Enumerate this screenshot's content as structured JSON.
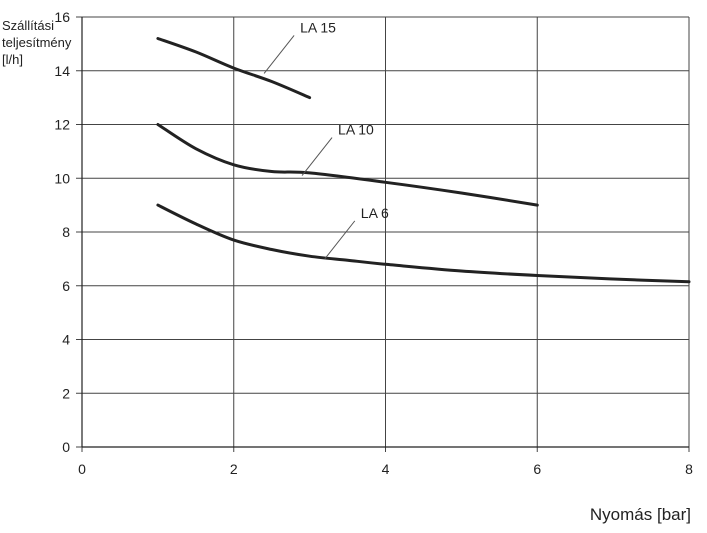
{
  "chart_data": {
    "type": "line",
    "ylabel_lines": [
      "Szállítási",
      "teljesítmény",
      "[l/h]"
    ],
    "xlabel": "Nyomás [bar]",
    "xlim": [
      0,
      8
    ],
    "ylim": [
      0,
      16
    ],
    "x_ticks": [
      "0",
      "2",
      "4",
      "6",
      "8"
    ],
    "y_ticks": [
      "0",
      "2",
      "4",
      "6",
      "8",
      "10",
      "12",
      "14",
      "16"
    ],
    "x_tick_values": [
      0,
      2,
      4,
      6,
      8
    ],
    "y_tick_values": [
      0,
      2,
      4,
      6,
      8,
      10,
      12,
      14,
      16
    ],
    "grid": true,
    "line_color": "#222222",
    "grid_color": "#444444",
    "series": [
      {
        "name": "LA 15",
        "points": [
          [
            1.0,
            15.2
          ],
          [
            1.5,
            14.7
          ],
          [
            2.0,
            14.1
          ],
          [
            2.5,
            13.6
          ],
          [
            3.0,
            13.0
          ]
        ],
        "label_anchor": [
          2.4,
          13.9
        ]
      },
      {
        "name": "LA 10",
        "points": [
          [
            1.0,
            12.0
          ],
          [
            1.5,
            11.1
          ],
          [
            2.0,
            10.5
          ],
          [
            2.5,
            10.25
          ],
          [
            3.0,
            10.2
          ],
          [
            4.0,
            9.85
          ],
          [
            5.0,
            9.45
          ],
          [
            6.0,
            9.0
          ]
        ],
        "label_anchor": [
          2.9,
          10.1
        ]
      },
      {
        "name": "LA 6",
        "points": [
          [
            1.0,
            9.0
          ],
          [
            1.5,
            8.3
          ],
          [
            2.0,
            7.7
          ],
          [
            2.5,
            7.35
          ],
          [
            3.0,
            7.1
          ],
          [
            3.5,
            6.95
          ],
          [
            4.0,
            6.8
          ],
          [
            5.0,
            6.55
          ],
          [
            6.0,
            6.38
          ],
          [
            7.0,
            6.25
          ],
          [
            8.0,
            6.15
          ]
        ],
        "label_anchor": [
          3.2,
          7.0
        ]
      }
    ]
  }
}
